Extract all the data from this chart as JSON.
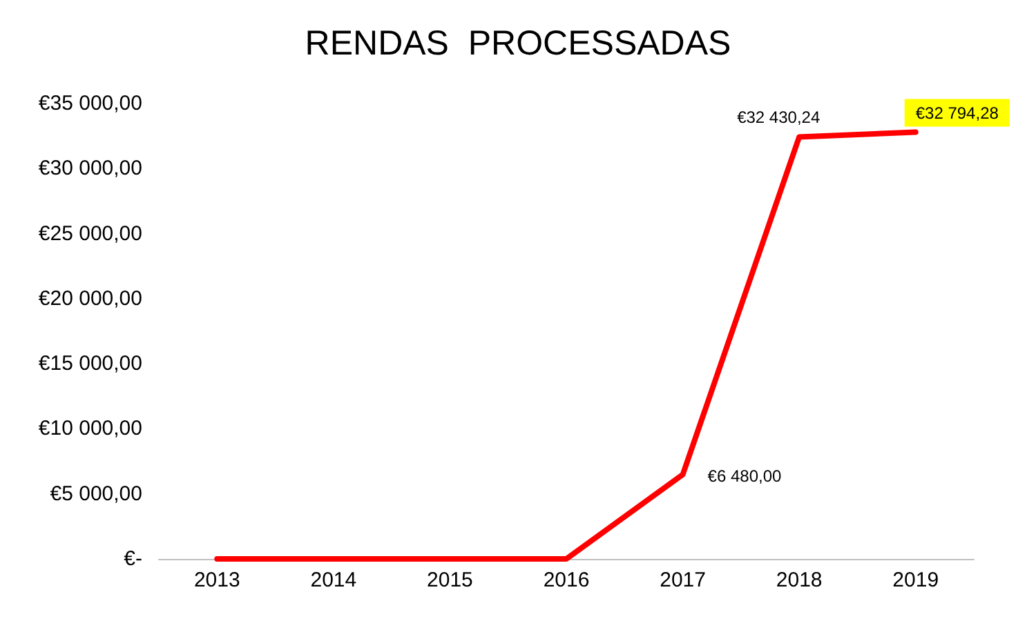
{
  "chart_data": {
    "type": "line",
    "title": "RENDAS  PROCESSADAS",
    "categories": [
      "2013",
      "2014",
      "2015",
      "2016",
      "2017",
      "2018",
      "2019"
    ],
    "series": [
      {
        "color": "#ff0000",
        "values": [
          0,
          0,
          0,
          0,
          6480,
          32430.24,
          32794.28
        ],
        "value_labels": [
          null,
          null,
          null,
          null,
          "€6 480,00",
          "€32 430,24",
          "€32 794,28"
        ]
      }
    ],
    "ylim": [
      0,
      35000
    ],
    "yticks": [
      {
        "value": 0,
        "label": "€-"
      },
      {
        "value": 5000,
        "label": "€5 000,00"
      },
      {
        "value": 10000,
        "label": "€10 000,00"
      },
      {
        "value": 15000,
        "label": "€15 000,00"
      },
      {
        "value": 20000,
        "label": "€20 000,00"
      },
      {
        "value": 25000,
        "label": "€25 000,00"
      },
      {
        "value": 30000,
        "label": "€30 000,00"
      },
      {
        "value": 35000,
        "label": "€35 000,00"
      }
    ],
    "marker": "none",
    "line_style": "solid"
  }
}
